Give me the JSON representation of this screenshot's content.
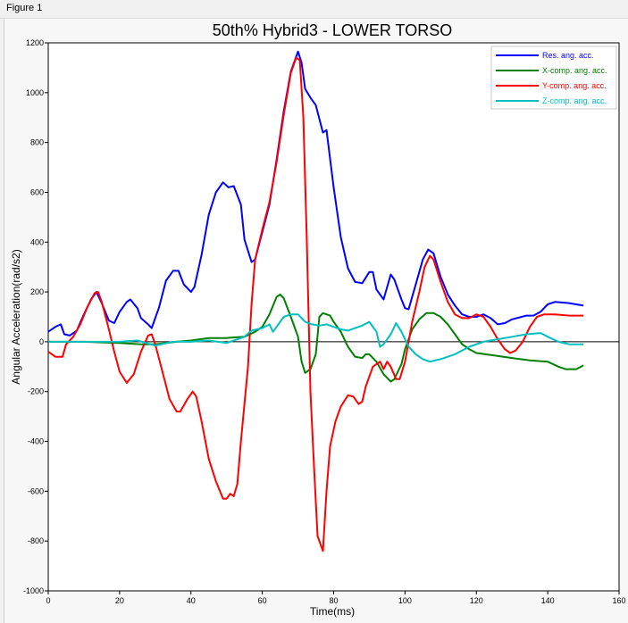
{
  "window": {
    "title": "Figure 1"
  },
  "chart_data": {
    "type": "line",
    "title": "50th% Hybrid3 - LOWER TORSO",
    "xlabel": "Time(ms)",
    "ylabel": "Angular Acceleration(rad/s2)",
    "xlim": [
      0,
      160
    ],
    "ylim": [
      -1000,
      1200
    ],
    "xticks": [
      0,
      20,
      40,
      60,
      80,
      100,
      120,
      140,
      160
    ],
    "yticks": [
      -1000,
      -800,
      -600,
      -400,
      -200,
      0,
      200,
      400,
      600,
      800,
      1000,
      1200
    ],
    "grid": false,
    "zero_line": true,
    "legend_position": "top-right",
    "series": [
      {
        "name": "Res. ang. acc.",
        "color": "#0000ff",
        "x": [
          0,
          2,
          3.5,
          4.5,
          6,
          8,
          10,
          12,
          13.5,
          15,
          17,
          18.5,
          20,
          22,
          23,
          25,
          26,
          28,
          29,
          31,
          33,
          35,
          36.5,
          38,
          40,
          41,
          43,
          45,
          47,
          49,
          50.5,
          52,
          54,
          55,
          57,
          58,
          60,
          62,
          64,
          66,
          68,
          70,
          71,
          72,
          73.5,
          75,
          77,
          78,
          80,
          82,
          84,
          86,
          88,
          90,
          91,
          92,
          94,
          96,
          97,
          99,
          100,
          101,
          103,
          105,
          106.5,
          108,
          110,
          112,
          114,
          116,
          118,
          120,
          122,
          124,
          126,
          128,
          130,
          134,
          136,
          138,
          140,
          142,
          146,
          150
        ],
        "y": [
          40,
          60,
          70,
          30,
          25,
          45,
          110,
          170,
          200,
          155,
          85,
          75,
          120,
          160,
          170,
          135,
          95,
          70,
          55,
          135,
          245,
          285,
          285,
          230,
          200,
          220,
          350,
          510,
          600,
          640,
          620,
          625,
          550,
          410,
          320,
          330,
          440,
          550,
          730,
          925,
          1085,
          1165,
          1120,
          1015,
          980,
          950,
          840,
          850,
          620,
          420,
          295,
          240,
          235,
          280,
          280,
          210,
          170,
          270,
          250,
          170,
          135,
          130,
          230,
          330,
          370,
          355,
          260,
          190,
          145,
          110,
          100,
          100,
          110,
          95,
          70,
          75,
          90,
          105,
          105,
          120,
          150,
          160,
          155,
          145
        ]
      },
      {
        "name": "X-comp. ang. acc.",
        "color": "#008000",
        "x": [
          0,
          10,
          20,
          26,
          30,
          36,
          40,
          45,
          50,
          55,
          58,
          60,
          62,
          64,
          65,
          66,
          68,
          70,
          71,
          72,
          73.5,
          75,
          76,
          77,
          79,
          80,
          82,
          84,
          86,
          88,
          89,
          90,
          92,
          94,
          96,
          97,
          99,
          100,
          102,
          104,
          106,
          108,
          110,
          112,
          114,
          116,
          118,
          120,
          125,
          130,
          135,
          140,
          143,
          145,
          148,
          150
        ],
        "y": [
          0,
          0,
          -5,
          -10,
          -10,
          0,
          5,
          15,
          15,
          20,
          40,
          60,
          110,
          180,
          190,
          175,
          100,
          20,
          -80,
          -125,
          -110,
          -50,
          100,
          115,
          105,
          80,
          40,
          -20,
          -60,
          -65,
          -50,
          -50,
          -80,
          -130,
          -160,
          -150,
          -90,
          -30,
          50,
          90,
          115,
          115,
          100,
          70,
          30,
          -10,
          -30,
          -45,
          -55,
          -65,
          -75,
          -80,
          -100,
          -110,
          -110,
          -95
        ]
      },
      {
        "name": "Y-comp. ang. acc.",
        "color": "#ff0000",
        "x": [
          0,
          2,
          4,
          5,
          7,
          9,
          11,
          13,
          14,
          15,
          17,
          18.5,
          20,
          22,
          24,
          26,
          28,
          29,
          30,
          32,
          34,
          36,
          37,
          39,
          40.5,
          41.5,
          43,
          45,
          47,
          49,
          50,
          51,
          52,
          53,
          54,
          56,
          57,
          58,
          60,
          62,
          64,
          66,
          68,
          69.5,
          70.5,
          71.5,
          72.5,
          73.5,
          74.5,
          75.5,
          77,
          78,
          79,
          80.5,
          82,
          84,
          85.5,
          87,
          88,
          89,
          91,
          93,
          94,
          95,
          96,
          97.5,
          98.5,
          100,
          102,
          104,
          105.5,
          107,
          108,
          110,
          112,
          114,
          116,
          118,
          120,
          122,
          124,
          126,
          128,
          129.5,
          131,
          133,
          135,
          137,
          139,
          142,
          146,
          150
        ],
        "y": [
          -40,
          -60,
          -60,
          -10,
          20,
          70,
          140,
          195,
          200,
          160,
          50,
          -40,
          -120,
          -165,
          -130,
          -40,
          25,
          30,
          -10,
          -120,
          -230,
          -280,
          -280,
          -230,
          -200,
          -220,
          -320,
          -470,
          -560,
          -630,
          -630,
          -610,
          -620,
          -570,
          -400,
          -100,
          150,
          330,
          450,
          560,
          720,
          910,
          1080,
          1140,
          1130,
          900,
          400,
          -200,
          -500,
          -780,
          -840,
          -600,
          -420,
          -320,
          -260,
          -215,
          -220,
          -250,
          -240,
          -180,
          -100,
          -80,
          -110,
          -80,
          -100,
          -150,
          -150,
          -80,
          80,
          200,
          300,
          345,
          330,
          240,
          160,
          110,
          95,
          95,
          110,
          100,
          60,
          10,
          -30,
          -45,
          -35,
          0,
          60,
          100,
          110,
          110,
          105,
          105
        ]
      },
      {
        "name": "Z-comp. ang. acc.",
        "color": "#00bfbf",
        "x": [
          0,
          10,
          20,
          25,
          30,
          35,
          40,
          45,
          50,
          55,
          57,
          60,
          62,
          63,
          64,
          66,
          68,
          70,
          72,
          74,
          76,
          78,
          80,
          82,
          84,
          86,
          88,
          90,
          92,
          93,
          94,
          96,
          97.5,
          99,
          101,
          103,
          105,
          107,
          110,
          114,
          118,
          122,
          126,
          130,
          134,
          138,
          140,
          143,
          146,
          150
        ],
        "y": [
          0,
          0,
          0,
          5,
          -15,
          0,
          0,
          5,
          -5,
          20,
          45,
          55,
          70,
          40,
          60,
          100,
          110,
          110,
          80,
          70,
          65,
          70,
          60,
          50,
          45,
          55,
          65,
          80,
          40,
          -20,
          -10,
          30,
          75,
          40,
          -20,
          -50,
          -70,
          -80,
          -70,
          -50,
          -20,
          0,
          10,
          20,
          30,
          35,
          20,
          0,
          -10,
          -10
        ]
      }
    ]
  }
}
